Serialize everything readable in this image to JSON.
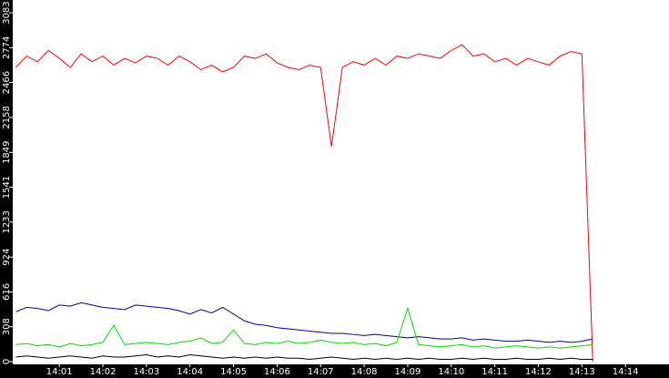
{
  "chart_data": {
    "type": "line",
    "x": [
      0,
      0.25,
      0.5,
      0.75,
      1,
      1.25,
      1.5,
      1.75,
      2,
      2.25,
      2.5,
      2.75,
      3,
      3.25,
      3.5,
      3.75,
      4,
      4.25,
      4.5,
      4.75,
      5,
      5.25,
      5.5,
      5.75,
      6,
      6.25,
      6.5,
      6.75,
      7,
      7.25,
      7.5,
      7.75,
      8,
      8.25,
      8.5,
      8.75,
      9,
      9.25,
      9.5,
      9.75,
      10,
      10.25,
      10.5,
      10.75,
      11,
      11.25,
      11.5,
      11.75,
      12,
      12.25,
      12.5,
      12.75,
      13,
      13.25
    ],
    "series": [
      {
        "color": "#ff0000",
        "values": [
          2600,
          2700,
          2650,
          2750,
          2680,
          2600,
          2720,
          2650,
          2700,
          2620,
          2680,
          2640,
          2700,
          2680,
          2620,
          2700,
          2650,
          2580,
          2620,
          2560,
          2600,
          2700,
          2680,
          2720,
          2640,
          2600,
          2580,
          2620,
          2600,
          1900,
          2600,
          2650,
          2620,
          2680,
          2620,
          2700,
          2680,
          2720,
          2700,
          2680,
          2750,
          2800,
          2700,
          2720,
          2650,
          2680,
          2620,
          2680,
          2650,
          2620,
          2700,
          2740,
          2720,
          0
        ]
      },
      {
        "color": "#0000aa",
        "values": [
          440,
          480,
          470,
          450,
          500,
          490,
          520,
          500,
          480,
          470,
          460,
          500,
          490,
          480,
          470,
          450,
          420,
          460,
          430,
          480,
          420,
          360,
          330,
          320,
          300,
          290,
          280,
          270,
          260,
          250,
          250,
          240,
          230,
          240,
          230,
          220,
          210,
          220,
          210,
          200,
          200,
          210,
          190,
          200,
          190,
          180,
          180,
          190,
          180,
          170,
          180,
          170,
          180,
          200
        ]
      },
      {
        "color": "#00dd00",
        "values": [
          150,
          160,
          140,
          150,
          130,
          160,
          140,
          150,
          170,
          320,
          150,
          160,
          170,
          160,
          150,
          170,
          180,
          210,
          160,
          170,
          280,
          160,
          150,
          170,
          160,
          180,
          160,
          170,
          190,
          170,
          160,
          170,
          150,
          160,
          140,
          170,
          470,
          150,
          140,
          130,
          140,
          150,
          130,
          140,
          120,
          130,
          140,
          130,
          120,
          130,
          120,
          130,
          140,
          150
        ]
      },
      {
        "color": "#000000",
        "values": [
          40,
          50,
          40,
          30,
          40,
          50,
          40,
          30,
          50,
          40,
          40,
          50,
          60,
          40,
          50,
          40,
          60,
          50,
          40,
          30,
          40,
          30,
          40,
          30,
          40,
          30,
          30,
          20,
          30,
          40,
          30,
          20,
          30,
          20,
          30,
          20,
          30,
          20,
          30,
          20,
          20,
          30,
          20,
          30,
          20,
          20,
          30,
          20,
          20,
          30,
          20,
          30,
          20,
          20
        ]
      }
    ],
    "xlim": [
      -0.07,
      15
    ],
    "xticks": [
      {
        "value": 1,
        "label": "14:01"
      },
      {
        "value": 2,
        "label": "14:02"
      },
      {
        "value": 3,
        "label": "14:03"
      },
      {
        "value": 4,
        "label": "14:04"
      },
      {
        "value": 5,
        "label": "14:05"
      },
      {
        "value": 6,
        "label": "14:06"
      },
      {
        "value": 7,
        "label": "14:07"
      },
      {
        "value": 8,
        "label": "14:08"
      },
      {
        "value": 9,
        "label": "14:09"
      },
      {
        "value": 10,
        "label": "14:10"
      },
      {
        "value": 11,
        "label": "14:11"
      },
      {
        "value": 12,
        "label": "14:12"
      },
      {
        "value": 13,
        "label": "14:13"
      },
      {
        "value": 14,
        "label": "14:14"
      }
    ],
    "ylim": [
      0,
      3083
    ],
    "yticks": [
      0,
      308,
      616,
      924,
      1233,
      1541,
      1849,
      2158,
      2466,
      2774,
      3083
    ]
  }
}
